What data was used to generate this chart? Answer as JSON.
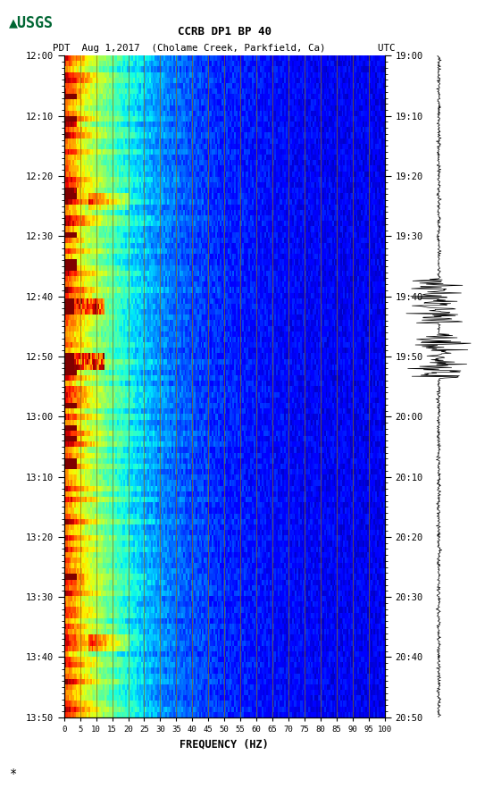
{
  "title_line1": "CCRB DP1 BP 40",
  "title_line2": "PDT  Aug 1,2017  (Cholame Creek, Parkfield, Ca)         UTC",
  "xlabel": "FREQUENCY (HZ)",
  "freq_ticks": [
    0,
    5,
    10,
    15,
    20,
    25,
    30,
    35,
    40,
    45,
    50,
    55,
    60,
    65,
    70,
    75,
    80,
    85,
    90,
    95,
    100
  ],
  "time_ticks_left": [
    "12:00",
    "12:10",
    "12:20",
    "12:30",
    "12:40",
    "12:50",
    "13:00",
    "13:10",
    "13:20",
    "13:30",
    "13:40",
    "13:50"
  ],
  "time_ticks_right": [
    "19:00",
    "19:10",
    "19:20",
    "19:30",
    "19:40",
    "19:50",
    "20:00",
    "20:10",
    "20:20",
    "20:30",
    "20:40",
    "20:50"
  ],
  "freq_min": 0,
  "freq_max": 100,
  "n_time_steps": 120,
  "n_freq_steps": 200,
  "background_color": "#ffffff",
  "spectrogram_bg": "#0000cc",
  "vertical_line_color": "#8B6914",
  "vertical_line_freq": [
    5,
    10,
    15,
    20,
    25,
    30,
    35,
    40,
    45,
    50,
    55,
    60,
    65,
    70,
    75,
    80,
    85,
    90,
    95
  ],
  "usgs_color": "#006633",
  "seismogram_color": "#000000"
}
